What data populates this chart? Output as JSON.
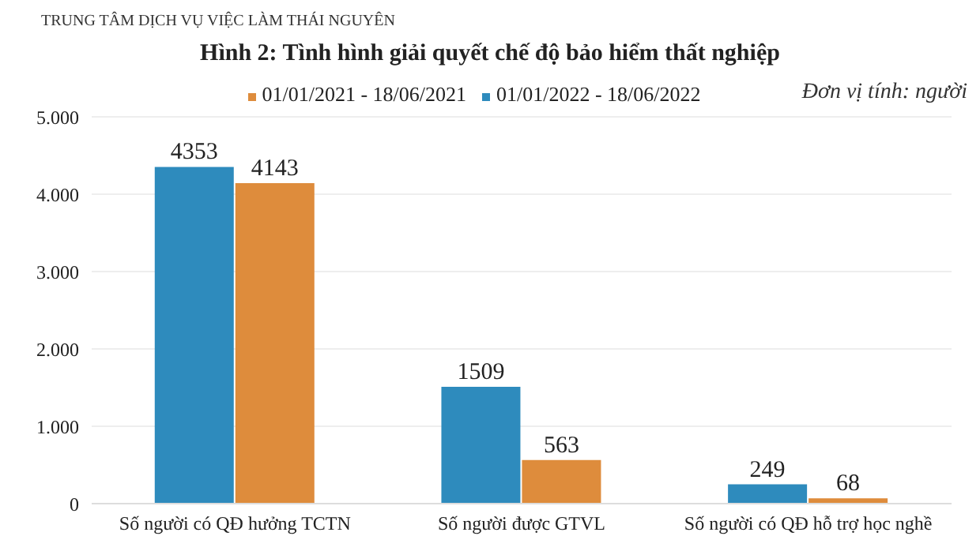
{
  "chart_data": {
    "type": "bar",
    "title": "Hình 2: Tình hình giải quyết chế độ bảo hiểm thất nghiệp",
    "annotations": [
      "TRUNG TÂM DỊCH VỤ VIỆC LÀM THÁI NGUYÊN",
      "Đơn vị tính: người"
    ],
    "categories": [
      "Số người có QĐ hưởng TCTN",
      "Số người được GTVL",
      "Số người có QĐ hỗ trợ học nghề"
    ],
    "series": [
      {
        "name": "01/01/2022 - 18/06/2022",
        "color": "#2e8bbd",
        "values": [
          4353,
          1509,
          249
        ]
      },
      {
        "name": "01/01/2021 - 18/06/2021",
        "color": "#de8c3c",
        "values": [
          4143,
          563,
          68
        ]
      }
    ],
    "ylim": [
      0,
      5000
    ],
    "yticks": [
      {
        "value": 0,
        "label": "0"
      },
      {
        "value": 1000,
        "label": "1.000"
      },
      {
        "value": 2000,
        "label": "2.000"
      },
      {
        "value": 3000,
        "label": "3.000"
      },
      {
        "value": 4000,
        "label": "4.000"
      },
      {
        "value": 5000,
        "label": "5.000"
      }
    ],
    "grid": "y",
    "legend": "top",
    "data_labels": true
  }
}
